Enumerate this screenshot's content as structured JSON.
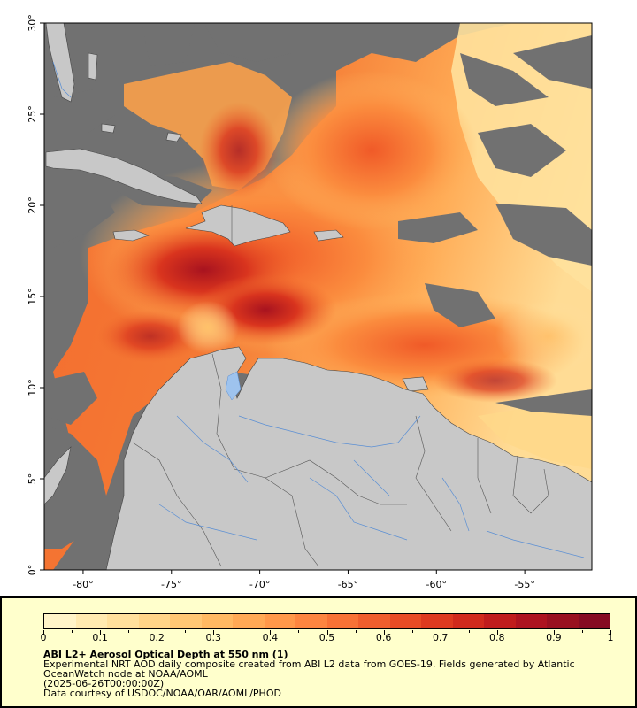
{
  "map": {
    "lon_ticks": [
      "-80°",
      "-75°",
      "-70°",
      "-65°",
      "-60°",
      "-55°"
    ],
    "lat_ticks": [
      "0°",
      "5°",
      "10°",
      "15°",
      "20°",
      "25°",
      "30°"
    ],
    "lon_range": [
      -82.2,
      -51.2
    ],
    "lat_range": [
      0,
      30
    ],
    "colors": {
      "land": "#c8c8c8",
      "nodata": "#717171",
      "coast": "#444444",
      "rivers": "#5b8fd4",
      "borders": "#555555"
    }
  },
  "legend": {
    "colorbar_ticks": [
      "0",
      "0.1",
      "0.2",
      "0.3",
      "0.4",
      "0.5",
      "0.6",
      "0.7",
      "0.8",
      "0.9",
      "1"
    ],
    "colorbar_colors": [
      "#fff4c8",
      "#ffeab0",
      "#ffe09c",
      "#ffd488",
      "#ffc774",
      "#ffb962",
      "#ffa955",
      "#ff984a",
      "#fd8540",
      "#f87236",
      "#f05e2d",
      "#e84c25",
      "#de3a1f",
      "#d12a1c",
      "#c01c1c",
      "#ad131f",
      "#99101f",
      "#860b22"
    ],
    "title": "ABI L2+ Aerosol Optical Depth at 550 nm (1)",
    "line1": "Experimental NRT AOD daily composite created from ABI L2 data from GOES-19. Fields generated by Atlantic",
    "line2": "OceanWatch node at NOAA/AOML",
    "line3": "(2025-06-26T00:00:00Z)",
    "line4": "Data courtesy of USDOC/NOAA/OAR/AOML/PHOD"
  }
}
